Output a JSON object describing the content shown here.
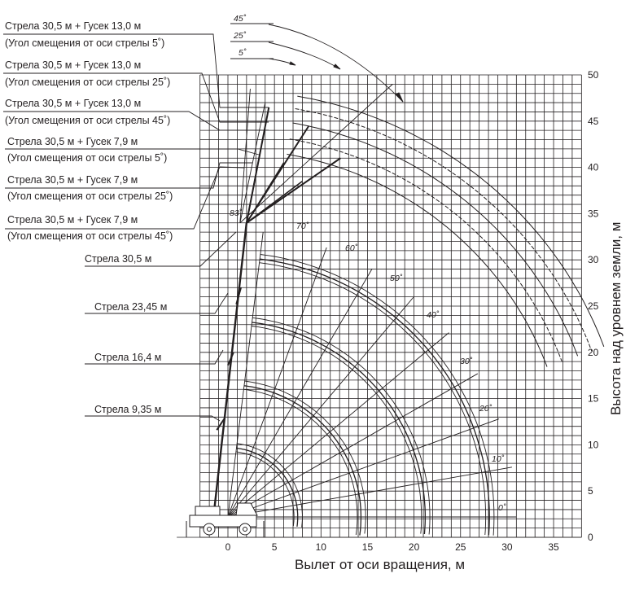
{
  "labels": [
    "Стрела 30,5 м + Гусек 13,0 м",
    "(Угол смещения от оси стрелы 5˚)",
    "Стрела 30,5 м + Гусек 13,0 м",
    "(Угол смещения от оси стрелы 25˚)",
    "Стрела 30,5 м + Гусек 13,0 м",
    "(Угол смещения от оси стрелы 45˚)",
    "Стрела 30,5 м + Гусек 7,9 м",
    "(Угол смещения от оси стрелы 5˚)",
    "Стрела 30,5 м + Гусек 7,9 м",
    "(Угол смещения от оси стрелы 25˚)",
    "Стрела 30,5 м + Гусек 7,9 м",
    "(Угол смещения от оси стрелы 45˚)",
    "Стрела 30,5 м",
    "Стрела 23,45 м",
    "Стрела 16,4 м",
    "Стрела 9,35 м"
  ],
  "offset_angles": [
    "45˚",
    "25˚",
    "5˚"
  ],
  "boom_angle_max": "83˚",
  "boom_angles": [
    "70˚",
    "60˚",
    "50˚",
    "40˚",
    "30˚",
    "20˚",
    "10˚",
    "0˚"
  ],
  "x_axis": {
    "title": "Вылет от оси вращения, м",
    "ticks": [
      "0",
      "5",
      "10",
      "15",
      "20",
      "25",
      "30",
      "35"
    ],
    "tick_values": [
      0,
      5,
      10,
      15,
      20,
      25,
      30,
      35
    ]
  },
  "y_axis": {
    "title": "Высота над уровнем земли, м",
    "ticks": [
      "0",
      "5",
      "10",
      "15",
      "20",
      "25",
      "30",
      "35",
      "40",
      "45",
      "50"
    ],
    "tick_values": [
      0,
      5,
      10,
      15,
      20,
      25,
      30,
      35,
      40,
      45,
      50
    ]
  },
  "booms": [
    {
      "length": 9.35,
      "reach_max": 7.5
    },
    {
      "length": 16.4,
      "reach_max": 14.3
    },
    {
      "length": 23.45,
      "reach_max": 21.2
    },
    {
      "length": 30.5,
      "reach_max": 28.1
    }
  ],
  "colors": {
    "ink": "#231f20",
    "background": "#ffffff"
  }
}
